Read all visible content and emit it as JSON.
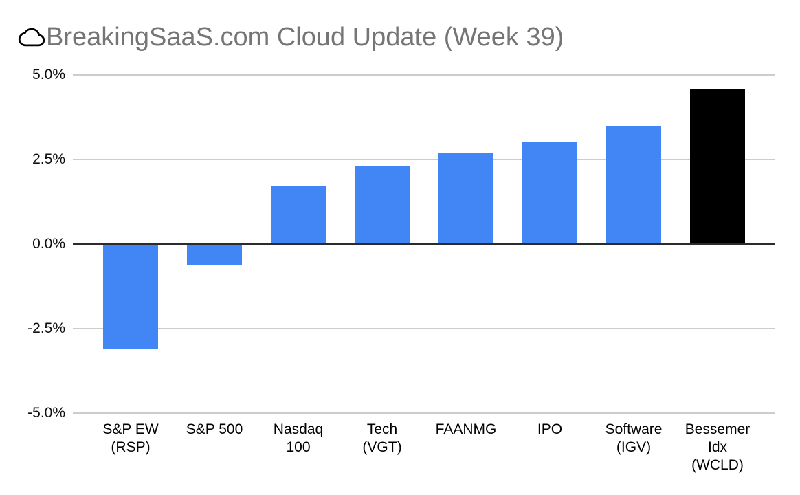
{
  "header": {
    "icon": "cloud-icon",
    "title": "BreakingSaaS.com Cloud Update (Week 39)"
  },
  "colors": {
    "background": "#ffffff",
    "title_text": "#757575",
    "bar_default": "#4285f4",
    "bar_highlight": "#000000",
    "gridline": "#cccccc",
    "zero_line": "#2b2b2b",
    "axis_label": "#000000"
  },
  "chart_data": {
    "type": "bar",
    "title": "BreakingSaaS.com Cloud Update (Week 39)",
    "xlabel": "",
    "ylabel": "",
    "ylim": [
      -5,
      5
    ],
    "grid": true,
    "legend_position": "none",
    "yticks": [
      {
        "value": 5.0,
        "label": "5.0%"
      },
      {
        "value": 2.5,
        "label": "2.5%"
      },
      {
        "value": 0.0,
        "label": "0.0%"
      },
      {
        "value": -2.5,
        "label": "-2.5%"
      },
      {
        "value": -5.0,
        "label": "-5.0%"
      }
    ],
    "categories": [
      "S&P EW (RSP)",
      "S&P 500",
      "Nasdaq 100",
      "Tech (VGT)",
      "FAANMG",
      "IPO",
      "Software (IGV)",
      "Bessemer Idx (WCLD)"
    ],
    "bars": [
      {
        "category": "S&P EW (RSP)",
        "label_lines": [
          "S&P EW",
          "(RSP)"
        ],
        "value": -3.1,
        "color": "#4285f4"
      },
      {
        "category": "S&P 500",
        "label_lines": [
          "S&P 500"
        ],
        "value": -0.6,
        "color": "#4285f4"
      },
      {
        "category": "Nasdaq 100",
        "label_lines": [
          "Nasdaq",
          "100"
        ],
        "value": 1.7,
        "color": "#4285f4"
      },
      {
        "category": "Tech (VGT)",
        "label_lines": [
          "Tech",
          "(VGT)"
        ],
        "value": 2.3,
        "color": "#4285f4"
      },
      {
        "category": "FAANMG",
        "label_lines": [
          "FAANMG"
        ],
        "value": 2.7,
        "color": "#4285f4"
      },
      {
        "category": "IPO",
        "label_lines": [
          "IPO"
        ],
        "value": 3.0,
        "color": "#4285f4"
      },
      {
        "category": "Software (IGV)",
        "label_lines": [
          "Software",
          "(IGV)"
        ],
        "value": 3.5,
        "color": "#4285f4"
      },
      {
        "category": "Bessemer Idx (WCLD)",
        "label_lines": [
          "Bessemer",
          "Idx",
          "(WCLD)"
        ],
        "value": 4.6,
        "color": "#000000"
      }
    ]
  }
}
